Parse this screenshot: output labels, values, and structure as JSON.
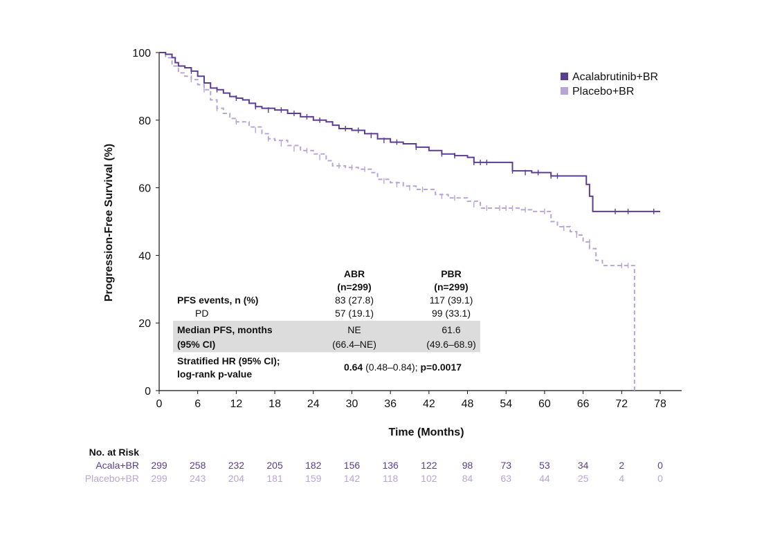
{
  "chart_data": {
    "type": "line",
    "subtype": "kaplan-meier",
    "xlabel": "Time (Months)",
    "ylabel": "Progression-Free Survival (%)",
    "xlim": [
      0,
      78
    ],
    "ylim": [
      0,
      100
    ],
    "xticks": [
      0,
      6,
      12,
      18,
      24,
      30,
      36,
      42,
      48,
      54,
      60,
      66,
      72,
      78
    ],
    "yticks": [
      0,
      20,
      40,
      60,
      80,
      100
    ],
    "legend_position": "top-right",
    "colors": {
      "acala": "#5b3d93",
      "placebo": "#b8a5d6"
    },
    "series": [
      {
        "name": "Acalabrutinib+BR",
        "style": "solid",
        "points": [
          [
            0,
            100
          ],
          [
            1,
            99.5
          ],
          [
            2,
            98.5
          ],
          [
            2.5,
            97
          ],
          [
            3,
            96
          ],
          [
            4,
            95.5
          ],
          [
            5,
            94.5
          ],
          [
            6,
            93
          ],
          [
            7,
            91
          ],
          [
            8,
            89.5
          ],
          [
            9,
            89
          ],
          [
            10,
            88
          ],
          [
            11,
            87
          ],
          [
            12,
            86.5
          ],
          [
            13,
            86
          ],
          [
            14,
            85
          ],
          [
            15,
            84
          ],
          [
            16,
            83.5
          ],
          [
            18,
            83
          ],
          [
            20,
            82
          ],
          [
            22,
            81
          ],
          [
            24,
            80
          ],
          [
            26,
            79.5
          ],
          [
            27,
            78.5
          ],
          [
            28,
            77.5
          ],
          [
            30,
            77
          ],
          [
            32,
            76
          ],
          [
            34,
            74.5
          ],
          [
            36,
            73.5
          ],
          [
            38,
            73
          ],
          [
            40,
            72
          ],
          [
            42,
            71
          ],
          [
            44,
            70
          ],
          [
            46,
            69.5
          ],
          [
            48,
            69
          ],
          [
            49,
            67.5
          ],
          [
            52,
            67.5
          ],
          [
            55,
            65
          ],
          [
            58,
            64.5
          ],
          [
            61,
            63.5
          ],
          [
            64,
            63.5
          ],
          [
            66,
            63.5
          ],
          [
            66.5,
            61
          ],
          [
            67,
            57.5
          ],
          [
            67.5,
            53
          ],
          [
            70,
            53
          ],
          [
            72,
            53
          ],
          [
            78,
            53
          ]
        ],
        "censors": [
          [
            5,
            94.5
          ],
          [
            9,
            89
          ],
          [
            12,
            86.5
          ],
          [
            15,
            84
          ],
          [
            17,
            83
          ],
          [
            19,
            83
          ],
          [
            21,
            82
          ],
          [
            23,
            81
          ],
          [
            25,
            80
          ],
          [
            29,
            77.5
          ],
          [
            31,
            77
          ],
          [
            33,
            75.5
          ],
          [
            35,
            74
          ],
          [
            37,
            73.5
          ],
          [
            40,
            72
          ],
          [
            44,
            70
          ],
          [
            46,
            69.5
          ],
          [
            49,
            67.5
          ],
          [
            50,
            67.5
          ],
          [
            51,
            67.5
          ],
          [
            55,
            65
          ],
          [
            57,
            64.5
          ],
          [
            59,
            64.5
          ],
          [
            61,
            63.5
          ],
          [
            62,
            63.5
          ],
          [
            71,
            53
          ],
          [
            73,
            53
          ],
          [
            77,
            53
          ]
        ]
      },
      {
        "name": "Placebo+BR",
        "style": "dashed",
        "points": [
          [
            0,
            100
          ],
          [
            1,
            98.5
          ],
          [
            2,
            96
          ],
          [
            3,
            94
          ],
          [
            4,
            93
          ],
          [
            5,
            92
          ],
          [
            6,
            90.5
          ],
          [
            7,
            89
          ],
          [
            8,
            86
          ],
          [
            9,
            83.5
          ],
          [
            10,
            82
          ],
          [
            11,
            80.5
          ],
          [
            12,
            79.5
          ],
          [
            14,
            78
          ],
          [
            16,
            76
          ],
          [
            17,
            74.5
          ],
          [
            18,
            74
          ],
          [
            20,
            72.5
          ],
          [
            22,
            71
          ],
          [
            24,
            70
          ],
          [
            26,
            68
          ],
          [
            27,
            66.5
          ],
          [
            29,
            66
          ],
          [
            31,
            65.5
          ],
          [
            33,
            64.5
          ],
          [
            34,
            62.5
          ],
          [
            36,
            61.5
          ],
          [
            38,
            60.5
          ],
          [
            40,
            59.5
          ],
          [
            43,
            58
          ],
          [
            45,
            57
          ],
          [
            48,
            56
          ],
          [
            50,
            54
          ],
          [
            52,
            54
          ],
          [
            55,
            54
          ],
          [
            56,
            53.5
          ],
          [
            58,
            53
          ],
          [
            61,
            50
          ],
          [
            62,
            48.5
          ],
          [
            64,
            47
          ],
          [
            65,
            46
          ],
          [
            66,
            44
          ],
          [
            67,
            42
          ],
          [
            68,
            38.5
          ],
          [
            69,
            37
          ],
          [
            72,
            37
          ],
          [
            74,
            37
          ],
          [
            74,
            0
          ]
        ],
        "censors": [
          [
            5,
            92
          ],
          [
            7,
            89
          ],
          [
            9,
            83.5
          ],
          [
            12,
            79.5
          ],
          [
            15,
            77
          ],
          [
            17,
            74.5
          ],
          [
            19,
            73
          ],
          [
            21,
            71.5
          ],
          [
            23,
            71
          ],
          [
            25,
            69
          ],
          [
            28,
            66.5
          ],
          [
            30,
            66
          ],
          [
            32,
            65.5
          ],
          [
            35,
            62
          ],
          [
            37,
            61
          ],
          [
            39,
            60
          ],
          [
            41,
            59.5
          ],
          [
            44,
            57.5
          ],
          [
            46,
            57
          ],
          [
            49,
            55
          ],
          [
            51,
            54
          ],
          [
            53,
            54
          ],
          [
            54,
            54
          ],
          [
            55,
            54
          ],
          [
            57,
            53.5
          ],
          [
            60,
            53
          ],
          [
            63,
            48
          ],
          [
            65,
            46
          ],
          [
            67,
            44
          ],
          [
            72,
            37
          ],
          [
            73,
            37
          ]
        ]
      }
    ],
    "legend": [
      "Acalabrutinib+BR",
      "Placebo+BR"
    ]
  },
  "summary_table": {
    "col1_header": "ABR",
    "col1_n": "(n=299)",
    "col2_header": "PBR",
    "col2_n": "(n=299)",
    "row_events_label": "PFS events, n (%)",
    "row_events_abr": "83 (27.8)",
    "row_events_pbr": "117 (39.1)",
    "row_pd_label": "PD",
    "row_pd_abr": "57 (19.1)",
    "row_pd_pbr": "99 (33.1)",
    "row_median_label": "Median PFS, months",
    "row_median_abr": "NE",
    "row_median_pbr": "61.6",
    "row_ci_label": "(95% CI)",
    "row_ci_abr": "(66.4–NE)",
    "row_ci_pbr": "(49.6–68.9)",
    "row_hr_label_1": "Stratified HR (95% CI);",
    "row_hr_label_2": "log-rank p-value",
    "row_hr_value_bold": "0.64",
    "row_hr_value_ci": " (0.48–0.84); ",
    "row_hr_value_p": "p=0.0017"
  },
  "at_risk": {
    "title": "No. at Risk",
    "rows": [
      {
        "label": "Acala+BR",
        "values": [
          "299",
          "258",
          "232",
          "205",
          "182",
          "156",
          "136",
          "122",
          "98",
          "73",
          "53",
          "34",
          "2",
          "0"
        ]
      },
      {
        "label": "Placebo+BR",
        "values": [
          "299",
          "243",
          "204",
          "181",
          "159",
          "142",
          "118",
          "102",
          "84",
          "63",
          "44",
          "25",
          "4",
          "0"
        ]
      }
    ]
  }
}
